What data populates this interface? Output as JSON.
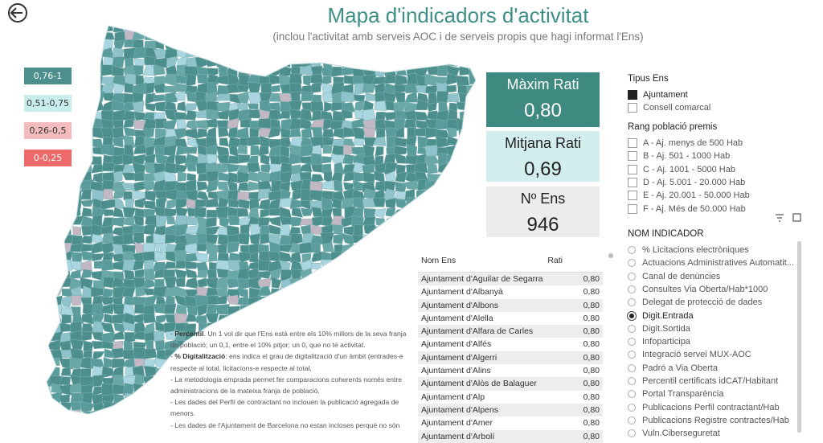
{
  "header": {
    "title": "Mapa d'indicadors d'activitat",
    "subtitle": "(inclou l'activitat amb serveis AOC i de serveis propis que hagi informat l'Ens)"
  },
  "legend": [
    "0,76-1",
    "0,51-0,75",
    "0,26-0,5",
    "0-0,25"
  ],
  "kpis": [
    {
      "label": "Màxim Rati",
      "value": "0,80"
    },
    {
      "label": "Mitjana Rati",
      "value": "0,69"
    },
    {
      "label": "Nº Ens",
      "value": "946"
    }
  ],
  "table": {
    "columns": [
      "Nom Ens",
      "Rati"
    ],
    "rows": [
      [
        "Ajuntament d'Aguilar de Segarra",
        "0,80"
      ],
      [
        "Ajuntament d'Albanyà",
        "0,80"
      ],
      [
        "Ajuntament d'Albons",
        "0,80"
      ],
      [
        "Ajuntament d'Alella",
        "0,80"
      ],
      [
        "Ajuntament d'Alfara de Carles",
        "0,80"
      ],
      [
        "Ajuntament d'Alfés",
        "0,80"
      ],
      [
        "Ajuntament d'Algerri",
        "0,80"
      ],
      [
        "Ajuntament d'Alins",
        "0,80"
      ],
      [
        "Ajuntament d'Alòs de Balaguer",
        "0,80"
      ],
      [
        "Ajuntament d'Alp",
        "0,80"
      ],
      [
        "Ajuntament d'Alpens",
        "0,80"
      ],
      [
        "Ajuntament d'Amer",
        "0,80"
      ],
      [
        "Ajuntament d'Arbolí",
        "0,80"
      ]
    ]
  },
  "notes": [
    {
      "term": "Percentil",
      "text": ". Un 1 vol dir que l'Ens està entre els 10% millors de la seva franja de població; un 0,1, entre el 10% pitjor; un 0, que no té activitat."
    },
    {
      "term": "% Digitalització",
      "text": ": ens indica el grau de digitalització d'un àmbit (entrades-e respecte al total, licitacions-e respecte al total,"
    },
    {
      "term": "",
      "text": "La metodologia emprada permet fer comparacions coherents només entre administracions de la mateixa franja de població."
    },
    {
      "term": "",
      "text": "Les dades del Perfil de contractant no inclouen la publicació agregada de menors."
    },
    {
      "term": "",
      "text": "Les dades de l'Ajuntament de Barcelona no estan incloses perquè no són"
    }
  ],
  "filters": {
    "tipus_ens": {
      "title": "Tipus Ens",
      "options": [
        "Ajuntament",
        "Consell comarcal"
      ],
      "selected": [
        0
      ]
    },
    "rang_poblacio": {
      "title": "Rang població premis",
      "options": [
        "A - Aj. menys de 500 Hab",
        "B - Aj. 501 - 1000 Hab",
        "C - Aj. 1001 - 5000 Hab",
        "D - Aj. 5.001 - 20.000 Hab",
        "E - Aj. 20.001 - 50.000 Hab",
        "F - Aj. Més de 50.000 Hab"
      ],
      "selected": []
    },
    "indicador": {
      "title": "NOM INDICADOR",
      "options": [
        "% Licitacions electròniques",
        "Actuacions Administratives Automatit...",
        "Canal de denúncies",
        "Consultes Via Oberta/Hab*1000",
        "Delegat de protecció de dades",
        "Digit.Entrada",
        "Digit.Sortida",
        "Infoparticipa",
        "Integració servei MUX-AOC",
        "Padró a Via Oberta",
        "Percentil certificats idCAT/Habitant",
        "Portal Transparència",
        "Publicacions Perfil contractant/Hab",
        "Publicacions Registre contractes/Hab",
        "Vuln.Ciberseguretat"
      ],
      "selected": [
        5
      ]
    }
  }
}
